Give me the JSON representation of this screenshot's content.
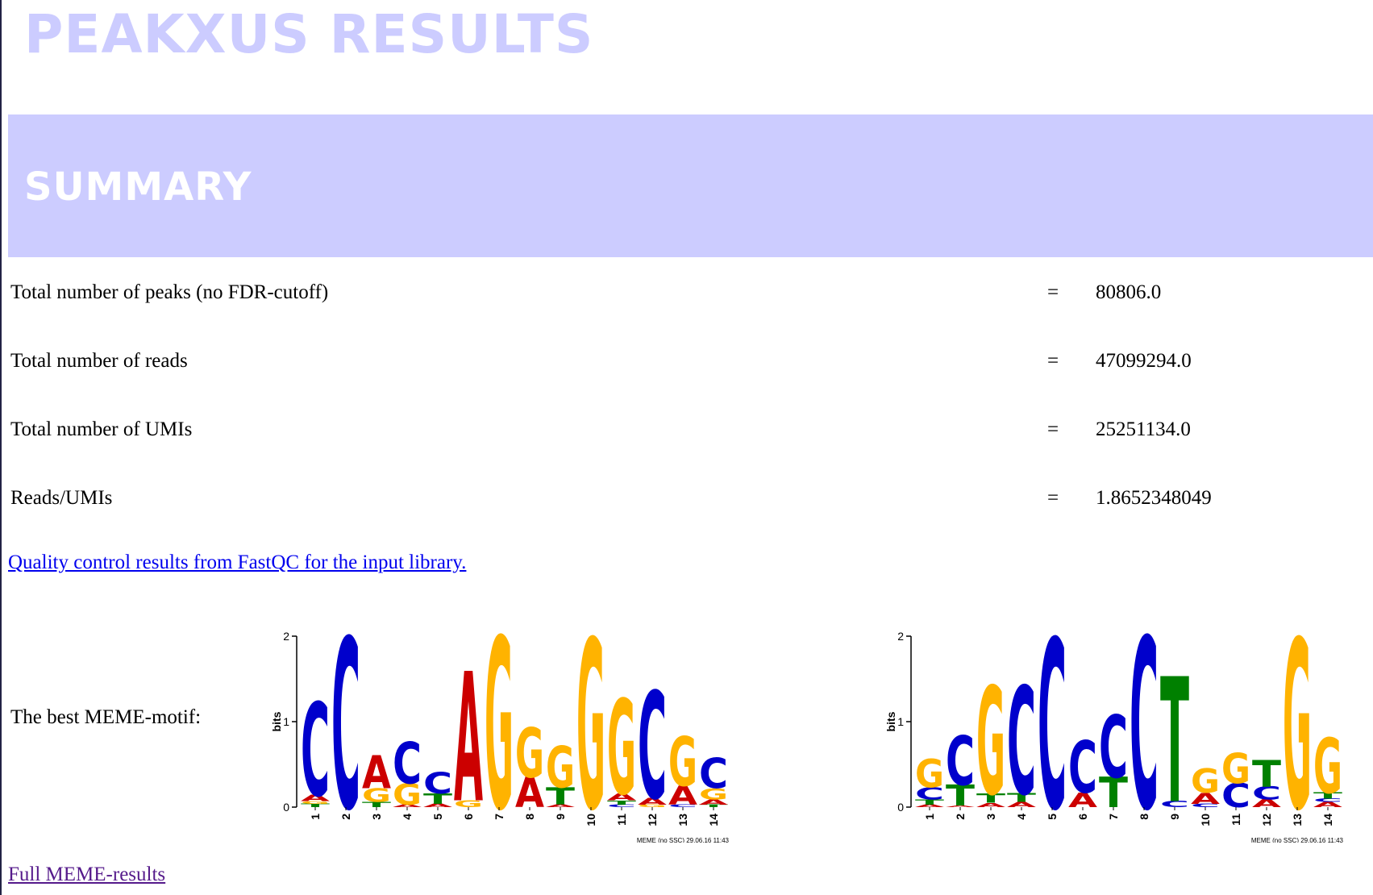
{
  "page": {
    "title": "PEAKXUS RESULTS",
    "summary_heading": "SUMMARY"
  },
  "summary": {
    "rows": [
      {
        "label": "Total number of peaks (no FDR-cutoff)",
        "eq": "=",
        "value": "80806.0"
      },
      {
        "label": "Total number of reads",
        "eq": "=",
        "value": "47099294.0"
      },
      {
        "label": "Total number of UMIs",
        "eq": "=",
        "value": "25251134.0"
      },
      {
        "label": "Reads/UMIs",
        "eq": "=",
        "value": "1.8652348049"
      }
    ]
  },
  "links": {
    "fastqc": "Quality control results from FastQC for the input library.",
    "meme": "Full MEME-results"
  },
  "motif": {
    "label": "The best MEME-motif:",
    "base_colors": {
      "A": "#cc0000",
      "C": "#0000cc",
      "G": "#ffb300",
      "T": "#008000"
    },
    "logos": [
      {
        "name": "logo-1",
        "ylabel": "bits",
        "yticks": [
          "0",
          "1",
          "2"
        ],
        "ymax": 2,
        "footer": "MEME (no SSC) 29.06.16 11:43",
        "positions": [
          {
            "x": "1",
            "stack": [
              [
                "T",
                0.04
              ],
              [
                "G",
                0.03
              ],
              [
                "A",
                0.07
              ],
              [
                "C",
                1.08
              ]
            ]
          },
          {
            "x": "2",
            "stack": [
              [
                "C",
                1.97
              ]
            ]
          },
          {
            "x": "3",
            "stack": [
              [
                "T",
                0.06
              ],
              [
                "G",
                0.16
              ],
              [
                "A",
                0.38
              ]
            ]
          },
          {
            "x": "4",
            "stack": [
              [
                "A",
                0.03
              ],
              [
                "G",
                0.25
              ],
              [
                "C",
                0.48
              ]
            ]
          },
          {
            "x": "5",
            "stack": [
              [
                "A",
                0.04
              ],
              [
                "T",
                0.12
              ],
              [
                "C",
                0.25
              ]
            ]
          },
          {
            "x": "6",
            "stack": [
              [
                "G",
                0.08
              ],
              [
                "A",
                1.5
              ]
            ]
          },
          {
            "x": "7",
            "stack": [
              [
                "G",
                1.98
              ]
            ]
          },
          {
            "x": "8",
            "stack": [
              [
                "A",
                0.35
              ],
              [
                "G",
                0.58
              ]
            ]
          },
          {
            "x": "9",
            "stack": [
              [
                "A",
                0.03
              ],
              [
                "T",
                0.2
              ],
              [
                "G",
                0.48
              ]
            ]
          },
          {
            "x": "10",
            "stack": [
              [
                "G",
                1.96
              ]
            ]
          },
          {
            "x": "11",
            "stack": [
              [
                "C",
                0.03
              ],
              [
                "T",
                0.05
              ],
              [
                "A",
                0.08
              ],
              [
                "G",
                1.1
              ]
            ]
          },
          {
            "x": "12",
            "stack": [
              [
                "G",
                0.03
              ],
              [
                "A",
                0.08
              ],
              [
                "C",
                1.24
              ]
            ]
          },
          {
            "x": "13",
            "stack": [
              [
                "C",
                0.03
              ],
              [
                "A",
                0.22
              ],
              [
                "G",
                0.57
              ]
            ]
          },
          {
            "x": "14",
            "stack": [
              [
                "T",
                0.03
              ],
              [
                "A",
                0.06
              ],
              [
                "G",
                0.13
              ],
              [
                "C",
                0.35
              ]
            ]
          }
        ]
      },
      {
        "name": "logo-2",
        "ylabel": "bits",
        "yticks": [
          "0",
          "1",
          "2"
        ],
        "ymax": 2,
        "footer": "MEME (no SSC) 29.06.16 11:43",
        "positions": [
          {
            "x": "1",
            "stack": [
              [
                "A",
                0.03
              ],
              [
                "T",
                0.06
              ],
              [
                "C",
                0.14
              ],
              [
                "G",
                0.33
              ]
            ]
          },
          {
            "x": "2",
            "stack": [
              [
                "A",
                0.02
              ],
              [
                "T",
                0.24
              ],
              [
                "C",
                0.57
              ]
            ]
          },
          {
            "x": "3",
            "stack": [
              [
                "A",
                0.05
              ],
              [
                "T",
                0.11
              ],
              [
                "G",
                1.25
              ]
            ]
          },
          {
            "x": "4",
            "stack": [
              [
                "A",
                0.06
              ],
              [
                "T",
                0.1
              ],
              [
                "C",
                1.25
              ]
            ]
          },
          {
            "x": "5",
            "stack": [
              [
                "C",
                1.96
              ]
            ]
          },
          {
            "x": "6",
            "stack": [
              [
                "A",
                0.17
              ],
              [
                "C",
                0.6
              ]
            ]
          },
          {
            "x": "7",
            "stack": [
              [
                "T",
                0.35
              ],
              [
                "C",
                0.72
              ]
            ]
          },
          {
            "x": "8",
            "stack": [
              [
                "C",
                1.98
              ]
            ]
          },
          {
            "x": "9",
            "stack": [
              [
                "C",
                0.07
              ],
              [
                "T",
                1.45
              ]
            ]
          },
          {
            "x": "10",
            "stack": [
              [
                "C",
                0.04
              ],
              [
                "A",
                0.13
              ],
              [
                "G",
                0.28
              ]
            ]
          },
          {
            "x": "11",
            "stack": [
              [
                "C",
                0.28
              ],
              [
                "G",
                0.35
              ]
            ]
          },
          {
            "x": "12",
            "stack": [
              [
                "A",
                0.09
              ],
              [
                "C",
                0.15
              ],
              [
                "T",
                0.31
              ]
            ]
          },
          {
            "x": "13",
            "stack": [
              [
                "G",
                1.96
              ]
            ]
          },
          {
            "x": "14",
            "stack": [
              [
                "A",
                0.06
              ],
              [
                "C",
                0.04
              ],
              [
                "T",
                0.07
              ],
              [
                "G",
                0.64
              ]
            ]
          }
        ]
      }
    ]
  }
}
